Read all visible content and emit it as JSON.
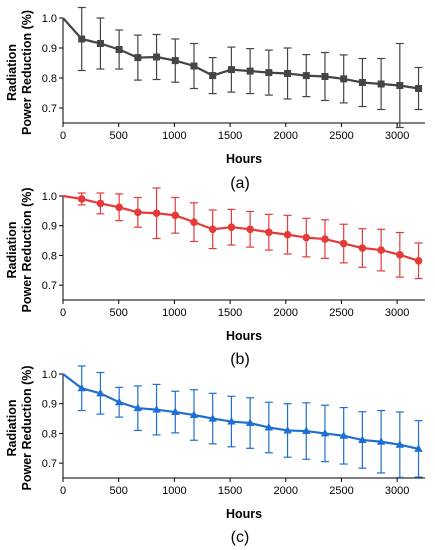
{
  "chart_data": [
    {
      "type": "line",
      "panel_label": "(a)",
      "xlabel": "Hours",
      "ylabel_lines": [
        "Radiation",
        "Power Reduction (%)"
      ],
      "xlim": [
        0,
        3250
      ],
      "ylim": [
        0.65,
        1.0
      ],
      "xticks": [
        0,
        500,
        1000,
        1500,
        2000,
        2500,
        3000
      ],
      "yticks": [
        0.7,
        0.8,
        0.9,
        1.0
      ],
      "ytick_labels": [
        "0.7",
        "0.8",
        "0.9",
        "1.0"
      ],
      "color": "#454545",
      "marker": "square",
      "series": [
        {
          "x": [
            0,
            168,
            336,
            504,
            672,
            840,
            1008,
            1176,
            1344,
            1512,
            1680,
            1848,
            2016,
            2184,
            2352,
            2520,
            2688,
            2856,
            3024,
            3192
          ],
          "y": [
            1.0,
            0.93,
            0.915,
            0.895,
            0.868,
            0.87,
            0.858,
            0.84,
            0.808,
            0.828,
            0.823,
            0.818,
            0.815,
            0.808,
            0.805,
            0.797,
            0.785,
            0.78,
            0.775,
            0.765
          ],
          "err": [
            0,
            0.105,
            0.085,
            0.065,
            0.075,
            0.075,
            0.072,
            0.075,
            0.06,
            0.075,
            0.075,
            0.075,
            0.085,
            0.07,
            0.08,
            0.08,
            0.08,
            0.085,
            0.14,
            0.07
          ]
        }
      ]
    },
    {
      "type": "line",
      "panel_label": "(b)",
      "xlabel": "Hours",
      "ylabel_lines": [
        "Radiation",
        "Power Reduction (%)"
      ],
      "xlim": [
        0,
        3250
      ],
      "ylim": [
        0.65,
        1.0
      ],
      "xticks": [
        0,
        500,
        1000,
        1500,
        2000,
        2500,
        3000
      ],
      "yticks": [
        0.7,
        0.8,
        0.9,
        1.0
      ],
      "ytick_labels": [
        "0.7",
        "0.8",
        "0.9",
        "1.0"
      ],
      "color": "#e53a3a",
      "marker": "circle",
      "series": [
        {
          "x": [
            0,
            168,
            336,
            504,
            672,
            840,
            1008,
            1176,
            1344,
            1512,
            1680,
            1848,
            2016,
            2184,
            2352,
            2520,
            2688,
            2856,
            3024,
            3192
          ],
          "y": [
            1.0,
            0.99,
            0.975,
            0.962,
            0.945,
            0.942,
            0.935,
            0.912,
            0.888,
            0.895,
            0.888,
            0.878,
            0.87,
            0.86,
            0.855,
            0.84,
            0.825,
            0.818,
            0.802,
            0.782
          ],
          "err": [
            0,
            0.02,
            0.035,
            0.045,
            0.05,
            0.085,
            0.06,
            0.065,
            0.065,
            0.06,
            0.06,
            0.06,
            0.065,
            0.065,
            0.065,
            0.065,
            0.065,
            0.07,
            0.075,
            0.06
          ]
        }
      ]
    },
    {
      "type": "line",
      "panel_label": "(c)",
      "xlabel": "Hours",
      "ylabel_lines": [
        "Radiation",
        "Power Reduction (%)"
      ],
      "xlim": [
        0,
        3250
      ],
      "ylim": [
        0.65,
        1.0
      ],
      "xticks": [
        0,
        500,
        1000,
        1500,
        2000,
        2500,
        3000
      ],
      "yticks": [
        0.7,
        0.8,
        0.9,
        1.0
      ],
      "ytick_labels": [
        "0.7",
        "0.8",
        "0.9",
        "1.0"
      ],
      "color": "#1f6fd1",
      "marker": "triangle",
      "series": [
        {
          "x": [
            0,
            168,
            336,
            504,
            672,
            840,
            1008,
            1176,
            1344,
            1512,
            1680,
            1848,
            2016,
            2184,
            2352,
            2520,
            2688,
            2856,
            3024,
            3192
          ],
          "y": [
            1.0,
            0.952,
            0.935,
            0.905,
            0.885,
            0.88,
            0.872,
            0.862,
            0.85,
            0.84,
            0.835,
            0.82,
            0.81,
            0.808,
            0.8,
            0.792,
            0.778,
            0.772,
            0.762,
            0.748
          ],
          "err": [
            0,
            0.075,
            0.07,
            0.05,
            0.075,
            0.085,
            0.07,
            0.085,
            0.085,
            0.085,
            0.085,
            0.085,
            0.09,
            0.095,
            0.095,
            0.095,
            0.095,
            0.105,
            0.11,
            0.095
          ]
        }
      ]
    }
  ]
}
